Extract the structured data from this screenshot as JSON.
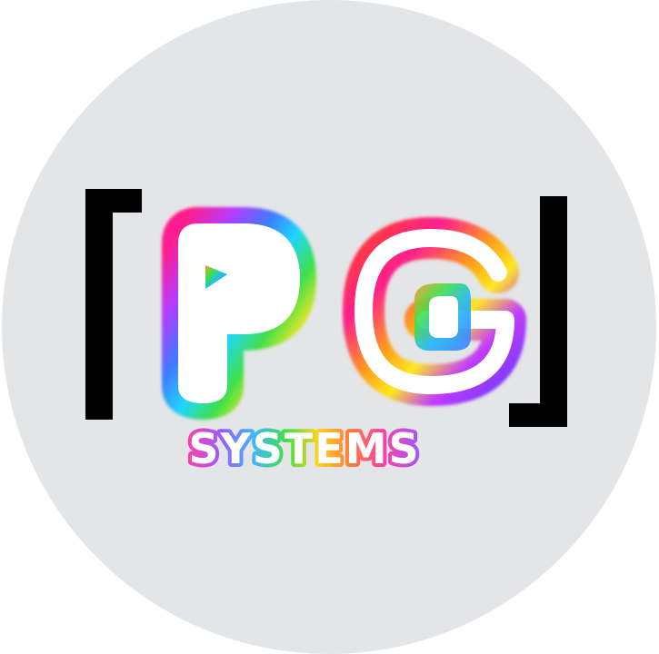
{
  "logo": {
    "initials": "PG",
    "wordmark": "SYSTEMS",
    "colors": {
      "background": "#e4e5e7",
      "bracket": "#000000",
      "rainbow": [
        "#ff1f8e",
        "#ff3b3b",
        "#ff9a1f",
        "#ffe81f",
        "#3ee04a",
        "#1fb6ff",
        "#7b3bff",
        "#e61fd0"
      ]
    }
  }
}
